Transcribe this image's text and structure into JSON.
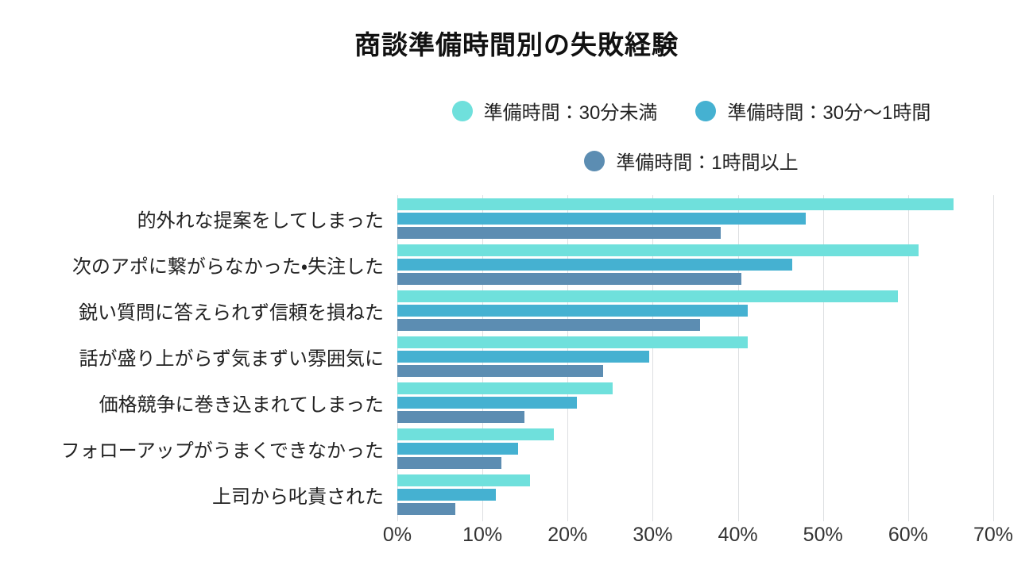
{
  "title": "商談準備時間別の失敗経験",
  "colors": {
    "background": "#ffffff",
    "gridline": "#dddfe2",
    "title_text": "#111111",
    "label_text": "#222222",
    "axis_text": "#333333"
  },
  "legend": {
    "position": "top-center",
    "items": [
      {
        "label": "準備時間：30分未満",
        "color": "#6FE0DC"
      },
      {
        "label": "準備時間：30分〜1時間",
        "color": "#45B1D1"
      },
      {
        "label": "準備時間：1時間以上",
        "color": "#5C8DB2"
      }
    ]
  },
  "chart_data": {
    "type": "bar",
    "orientation": "horizontal",
    "title": "商談準備時間別の失敗経験",
    "xlabel": "",
    "ylabel": "",
    "unit": "%",
    "xlim": [
      0,
      70
    ],
    "grid": true,
    "legend_position": "top-center",
    "x_tick_values": [
      0,
      10,
      20,
      30,
      40,
      50,
      60,
      70
    ],
    "x_tick_labels": [
      "0%",
      "10%",
      "20%",
      "30%",
      "40%",
      "50%",
      "60%",
      "70%"
    ],
    "categories": [
      "的外れな提案をしてしまった",
      "次のアポに繋がらなかった・失注した",
      "鋭い質問に答えられず信頼を損ねた",
      "話が盛り上がらず気まずい雰囲気に",
      "価格競争に巻き込まれてしまった",
      "フォローアップがうまくできなかった",
      "上司から叱責された"
    ],
    "series": [
      {
        "name": "準備時間：30分未満",
        "color": "#6FE0DC",
        "values": [
          65.3,
          61.2,
          58.8,
          41.2,
          25.3,
          18.4,
          15.6
        ]
      },
      {
        "name": "準備時間：30分〜1時間",
        "color": "#45B1D1",
        "values": [
          48.0,
          46.4,
          41.2,
          29.6,
          21.1,
          14.2,
          11.6
        ]
      },
      {
        "name": "準備時間：1時間以上",
        "color": "#5C8DB2",
        "values": [
          38.0,
          40.4,
          35.6,
          24.2,
          14.9,
          12.2,
          6.8
        ]
      }
    ]
  }
}
